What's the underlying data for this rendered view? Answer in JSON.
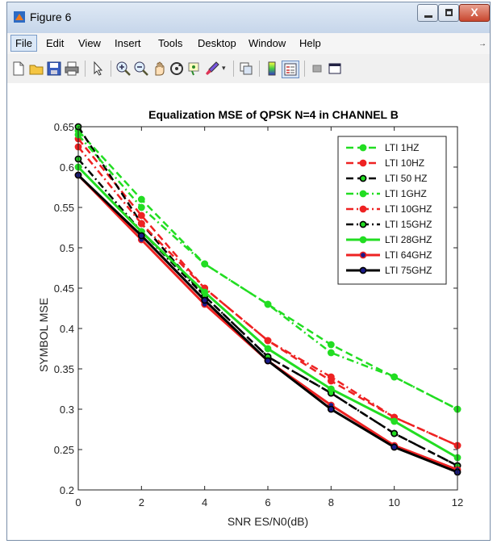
{
  "window": {
    "title": "Figure 6",
    "close_glyph": "X"
  },
  "menu": {
    "items": [
      "File",
      "Edit",
      "View",
      "Insert",
      "Tools",
      "Desktop",
      "Window",
      "Help"
    ]
  },
  "toolbar": {
    "icons": [
      "new-figure-icon",
      "open-file-icon",
      "save-icon",
      "print-icon",
      "pointer-icon",
      "zoom-in-icon",
      "zoom-out-icon",
      "pan-icon",
      "rotate-3d-icon",
      "data-cursor-icon",
      "brush-icon",
      "brush-dropdown-icon",
      "link-plot-icon",
      "colorbar-icon",
      "legend-icon",
      "hide-plot-tools-icon",
      "show-plot-tools-icon"
    ]
  },
  "colors": {
    "green": "#22dd22",
    "red": "#ee2222",
    "black": "#000000",
    "navy": "#1a1a8a"
  },
  "chart_data": {
    "type": "line",
    "title": "Equalization MSE of QPSK N=4 in CHANNEL B",
    "xlabel": "SNR ES/N0(dB)",
    "ylabel": "SYMBOL MSE",
    "x": [
      0,
      2,
      4,
      6,
      8,
      10,
      12
    ],
    "xlim": [
      0,
      12
    ],
    "ylim": [
      0.2,
      0.65
    ],
    "xticks": [
      "0",
      "2",
      "4",
      "6",
      "8",
      "10",
      "12"
    ],
    "yticks": [
      "0.2",
      "0.25",
      "0.3",
      "0.35",
      "0.4",
      "0.45",
      "0.5",
      "0.55",
      "0.6",
      "0.65"
    ],
    "legend_position": "top-right",
    "grid": false,
    "series": [
      {
        "name": "LTI 1HZ",
        "color": "#22dd22",
        "style": "dashed",
        "marker_face": "#22dd22",
        "values": [
          0.645,
          0.56,
          0.48,
          0.43,
          0.38,
          0.34,
          0.3
        ]
      },
      {
        "name": "LTI 10HZ",
        "color": "#ee2222",
        "style": "dashed",
        "marker_face": "#ee2222",
        "values": [
          0.635,
          0.54,
          0.45,
          0.385,
          0.335,
          0.29,
          0.255
        ]
      },
      {
        "name": "LTI 50 HZ",
        "color": "#000000",
        "style": "dashed",
        "marker_face": "#22dd22",
        "values": [
          0.65,
          0.53,
          0.44,
          0.365,
          0.32,
          0.27,
          0.23
        ]
      },
      {
        "name": "LTI 1GHZ",
        "color": "#22dd22",
        "style": "dashdot",
        "marker_face": "#22dd22",
        "values": [
          0.64,
          0.55,
          0.48,
          0.43,
          0.37,
          0.34,
          0.3
        ]
      },
      {
        "name": "LTI 10GHZ",
        "color": "#ee2222",
        "style": "dashdot",
        "marker_face": "#ee2222",
        "values": [
          0.625,
          0.53,
          0.45,
          0.385,
          0.34,
          0.29,
          0.255
        ]
      },
      {
        "name": "LTI 15GHZ",
        "color": "#000000",
        "style": "dashdot",
        "marker_face": "#22dd22",
        "values": [
          0.61,
          0.52,
          0.44,
          0.365,
          0.32,
          0.27,
          0.23
        ]
      },
      {
        "name": "LTI 28GHZ",
        "color": "#22dd22",
        "style": "solid",
        "marker_face": "#22dd22",
        "values": [
          0.6,
          0.52,
          0.445,
          0.375,
          0.325,
          0.285,
          0.24
        ]
      },
      {
        "name": "LTI 64GHZ",
        "color": "#ee2222",
        "style": "solid",
        "marker_face": "#1a1a8a",
        "values": [
          0.59,
          0.51,
          0.43,
          0.36,
          0.305,
          0.255,
          0.225
        ]
      },
      {
        "name": "LTI 75GHZ",
        "color": "#000000",
        "style": "solid",
        "marker_face": "#1a1a8a",
        "values": [
          0.59,
          0.515,
          0.435,
          0.36,
          0.3,
          0.253,
          0.222
        ]
      }
    ]
  }
}
